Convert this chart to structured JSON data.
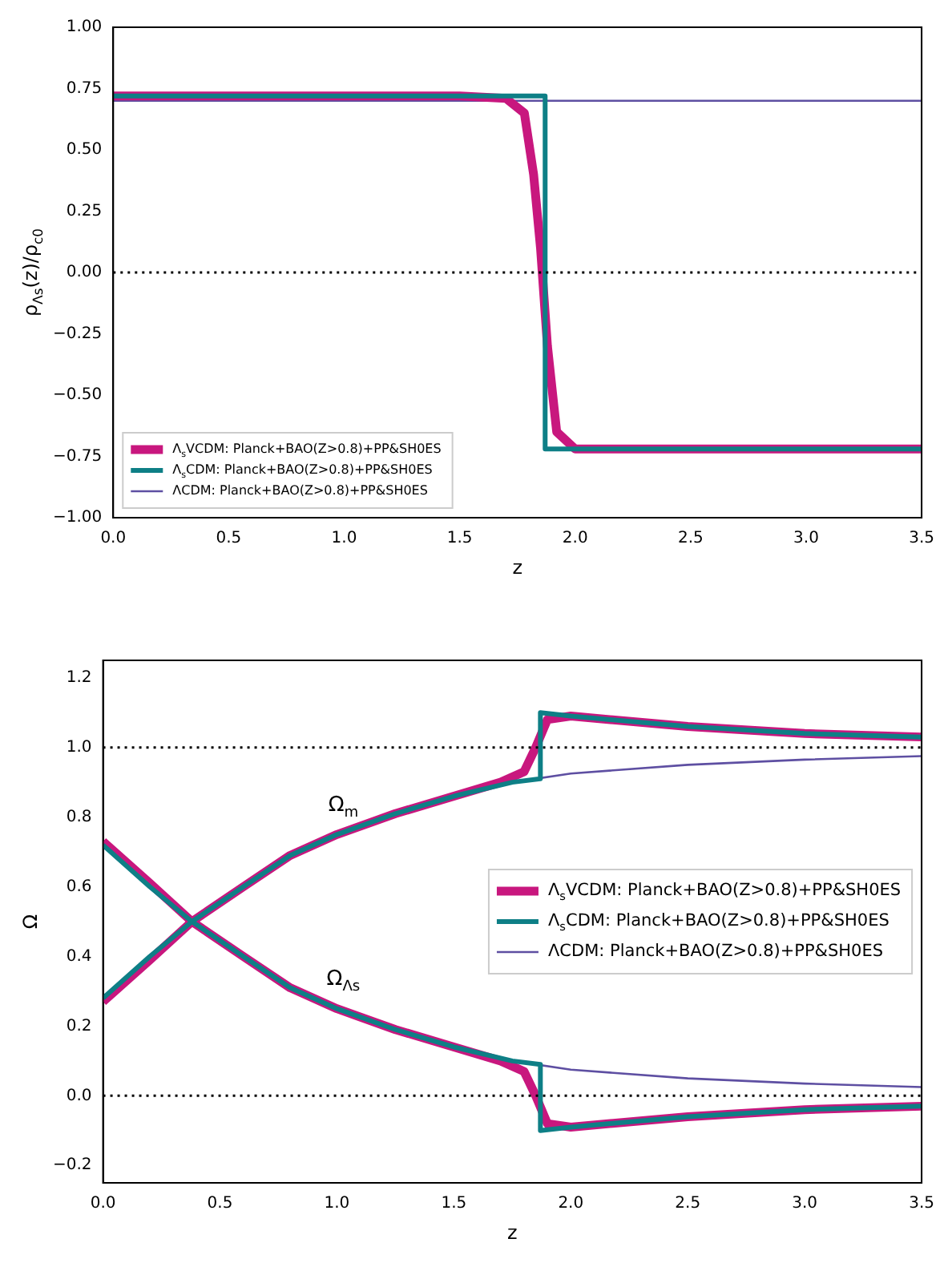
{
  "chart_data": [
    {
      "type": "line",
      "xlabel": "z",
      "ylabel": "ρ$_{Λs}$(z)/ρ$_{c0}$",
      "xlim": [
        0,
        3.5
      ],
      "xticks": [
        {
          "value": 0,
          "label": "0.0"
        },
        {
          "value": 0.5,
          "label": "0.5"
        },
        {
          "value": 1,
          "label": "1.0"
        },
        {
          "value": 1.5,
          "label": "1.5"
        },
        {
          "value": 2,
          "label": "2.0"
        },
        {
          "value": 2.5,
          "label": "2.5"
        },
        {
          "value": 3,
          "label": "3.0"
        },
        {
          "value": 3.5,
          "label": "3.5"
        }
      ],
      "ylim": [
        -1,
        1
      ],
      "yticks": [
        {
          "value": -1,
          "label": "−1.00"
        },
        {
          "value": -0.75,
          "label": "−0.75"
        },
        {
          "value": -0.5,
          "label": "−0.50"
        },
        {
          "value": -0.25,
          "label": "−0.25"
        },
        {
          "value": 0,
          "label": "0.00"
        },
        {
          "value": 0.25,
          "label": "0.25"
        },
        {
          "value": 0.5,
          "label": "0.50"
        },
        {
          "value": 0.75,
          "label": "0.75"
        },
        {
          "value": 1,
          "label": "1.00"
        }
      ],
      "grid": false,
      "legend": "bottom left",
      "ref_lines": [
        {
          "axis": "y",
          "value": 0,
          "line_style": "dotted",
          "color": "#000000"
        }
      ],
      "series": [
        {
          "name": "Λ$_{s}$VCDM: Planck+BAO(Z>0.8)+PP&SH0ES",
          "color": "#c8177e",
          "x": [
            0,
            1.5,
            1.7,
            1.78,
            1.82,
            1.85,
            1.88,
            1.92,
            2.0,
            3.5
          ],
          "values": [
            0.72,
            0.72,
            0.71,
            0.65,
            0.4,
            0.1,
            -0.3,
            -0.65,
            -0.72,
            -0.72
          ]
        },
        {
          "name": "Λ$_{s}$CDM: Planck+BAO(Z>0.8)+PP&SH0ES",
          "color": "#0e7f86",
          "x": [
            0,
            1.87,
            1.87,
            3.5
          ],
          "values": [
            0.72,
            0.72,
            -0.72,
            -0.72
          ]
        },
        {
          "name": "ΛCDM: Planck+BAO(Z>0.8)+PP&SH0ES",
          "color": "#5e4fa2",
          "x": [
            0,
            3.5
          ],
          "values": [
            0.7,
            0.7
          ]
        }
      ]
    },
    {
      "type": "line",
      "xlabel": "z",
      "ylabel": "Ω",
      "xlim": [
        0,
        3.5
      ],
      "xticks": [
        {
          "value": 0,
          "label": "0.0"
        },
        {
          "value": 0.5,
          "label": "0.5"
        },
        {
          "value": 1,
          "label": "1.0"
        },
        {
          "value": 1.5,
          "label": "1.5"
        },
        {
          "value": 2,
          "label": "2.0"
        },
        {
          "value": 2.5,
          "label": "2.5"
        },
        {
          "value": 3,
          "label": "3.0"
        },
        {
          "value": 3.5,
          "label": "3.5"
        }
      ],
      "ylim": [
        -0.25,
        1.25
      ],
      "yticks": [
        {
          "value": -0.2,
          "label": "−0.2"
        },
        {
          "value": 0,
          "label": "0.0"
        },
        {
          "value": 0.2,
          "label": "0.2"
        },
        {
          "value": 0.4,
          "label": "0.4"
        },
        {
          "value": 0.6,
          "label": "0.6"
        },
        {
          "value": 0.8,
          "label": "0.8"
        },
        {
          "value": 1,
          "label": "1.0"
        },
        {
          "value": 1.2,
          "label": "1.2"
        }
      ],
      "grid": false,
      "legend": "right",
      "ref_lines": [
        {
          "axis": "y",
          "value": 1,
          "line_style": "dotted",
          "color": "#000000"
        },
        {
          "axis": "y",
          "value": 0,
          "line_style": "dotted",
          "color": "#000000"
        }
      ],
      "annotations": [
        {
          "text": "Ω$_{m}$",
          "x": 1.0,
          "y": 0.75
        },
        {
          "text": "Ω$_{Λs}$",
          "x": 1.0,
          "y": 0.25
        }
      ],
      "series": [
        {
          "name": "Λ$_{s}$VCDM: Planck+BAO(Z>0.8)+PP&SH0ES",
          "color": "#c8177e",
          "x": [
            0,
            0.2,
            0.38,
            0.6,
            0.8,
            1.0,
            1.25,
            1.5,
            1.7,
            1.8,
            1.85,
            1.9,
            2.0,
            2.5,
            3.0,
            3.5
          ],
          "values": [
            0.27,
            0.39,
            0.5,
            0.6,
            0.69,
            0.75,
            0.81,
            0.86,
            0.9,
            0.93,
            1.0,
            1.08,
            1.09,
            1.06,
            1.04,
            1.03
          ]
        },
        {
          "name": "Λ$_{s}$CDM: Planck+BAO(Z>0.8)+PP&SH0ES",
          "color": "#0e7f86",
          "x": [
            0,
            0.2,
            0.38,
            0.6,
            0.8,
            1.0,
            1.25,
            1.5,
            1.75,
            1.87,
            1.87,
            2.0,
            2.5,
            3.0,
            3.5
          ],
          "values": [
            0.28,
            0.4,
            0.5,
            0.6,
            0.69,
            0.75,
            0.81,
            0.86,
            0.9,
            0.91,
            1.1,
            1.09,
            1.06,
            1.04,
            1.03
          ]
        },
        {
          "name": "ΛCDM: Planck+BAO(Z>0.8)+PP&SH0ES",
          "color": "#5e4fa2",
          "x": [
            0,
            0.2,
            0.38,
            0.6,
            0.8,
            1.0,
            1.25,
            1.5,
            1.75,
            2.0,
            2.5,
            3.0,
            3.5
          ],
          "values": [
            0.28,
            0.4,
            0.5,
            0.6,
            0.69,
            0.75,
            0.81,
            0.86,
            0.9,
            0.925,
            0.95,
            0.965,
            0.975
          ]
        },
        {
          "color": "#c8177e",
          "x": [
            0,
            0.2,
            0.38,
            0.6,
            0.8,
            1.0,
            1.25,
            1.5,
            1.7,
            1.8,
            1.85,
            1.9,
            2.0,
            2.5,
            3.0,
            3.5
          ],
          "values": [
            0.73,
            0.61,
            0.5,
            0.4,
            0.31,
            0.25,
            0.19,
            0.14,
            0.1,
            0.07,
            0.0,
            -0.08,
            -0.09,
            -0.06,
            -0.04,
            -0.03
          ]
        },
        {
          "color": "#0e7f86",
          "x": [
            0,
            0.2,
            0.38,
            0.6,
            0.8,
            1.0,
            1.25,
            1.5,
            1.75,
            1.87,
            1.87,
            2.0,
            2.5,
            3.0,
            3.5
          ],
          "values": [
            0.72,
            0.6,
            0.5,
            0.4,
            0.31,
            0.25,
            0.19,
            0.14,
            0.1,
            0.09,
            -0.1,
            -0.09,
            -0.06,
            -0.04,
            -0.03
          ]
        },
        {
          "color": "#5e4fa2",
          "x": [
            0,
            0.2,
            0.38,
            0.6,
            0.8,
            1.0,
            1.25,
            1.5,
            1.75,
            2.0,
            2.5,
            3.0,
            3.5
          ],
          "values": [
            0.72,
            0.6,
            0.5,
            0.4,
            0.31,
            0.25,
            0.19,
            0.14,
            0.1,
            0.075,
            0.05,
            0.035,
            0.025
          ]
        }
      ]
    }
  ]
}
